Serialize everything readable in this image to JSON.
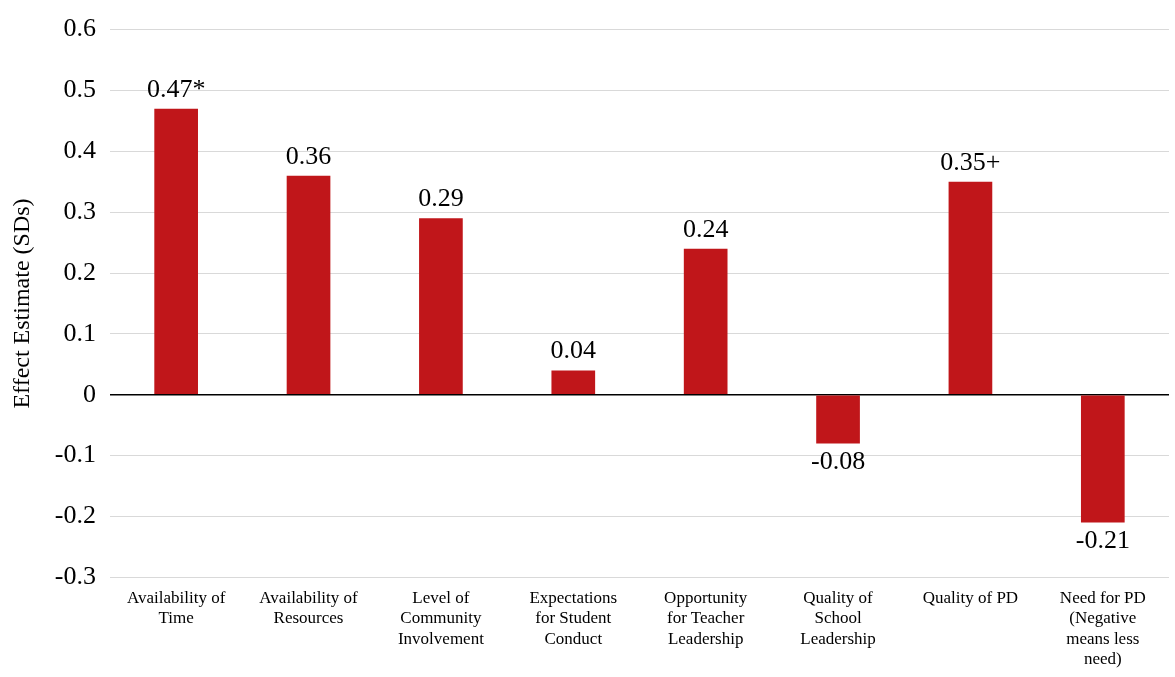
{
  "chart_data": {
    "type": "bar",
    "ylabel": "Effect Estimate (SDs)",
    "categories": [
      "Availability of\nTime",
      "Availability of\nResources",
      "Level of\nCommunity\nInvolvement",
      "Expectations\nfor Student\nConduct",
      "Opportunity\nfor Teacher\nLeadership",
      "Quality of\nSchool\nLeadership",
      "Quality of PD",
      "Need for PD\n(Negative\nmeans less\nneed)"
    ],
    "values": [
      0.47,
      0.36,
      0.29,
      0.04,
      0.24,
      -0.08,
      0.35,
      -0.21
    ],
    "value_labels": [
      "0.47*",
      "0.36",
      "0.29",
      "0.04",
      "0.24",
      "-0.08",
      "0.35+",
      "-0.21"
    ],
    "color": "#c0161a",
    "ylim": [
      -0.3,
      0.6
    ],
    "yticks": [
      -0.3,
      -0.2,
      -0.1,
      0,
      0.1,
      0.2,
      0.3,
      0.4,
      0.5,
      0.6
    ],
    "grid": "y"
  }
}
